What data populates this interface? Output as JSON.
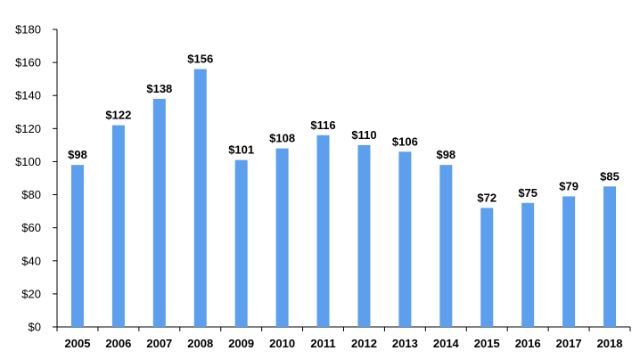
{
  "chart_data": {
    "type": "bar",
    "title": "",
    "xlabel": "",
    "ylabel": "",
    "categories": [
      "2005",
      "2006",
      "2007",
      "2008",
      "2009",
      "2010",
      "2011",
      "2012",
      "2013",
      "2014",
      "2015",
      "2016",
      "2017",
      "2018"
    ],
    "values": [
      98,
      122,
      138,
      156,
      101,
      108,
      116,
      110,
      106,
      98,
      72,
      75,
      79,
      85
    ],
    "data_labels": [
      "$98",
      "$122",
      "$138",
      "$156",
      "$101",
      "$108",
      "$116",
      "$110",
      "$106",
      "$98",
      "$72",
      "$75",
      "$79",
      "$85"
    ],
    "ylim": [
      0,
      180
    ],
    "yticks": [
      0,
      20,
      40,
      60,
      80,
      100,
      120,
      140,
      160,
      180
    ],
    "ytick_labels": [
      "$0",
      "$20",
      "$40",
      "$60",
      "$80",
      "$100",
      "$120",
      "$140",
      "$160",
      "$180"
    ],
    "grid": false,
    "legend": "none",
    "bar_color": "#5B9FEE"
  }
}
